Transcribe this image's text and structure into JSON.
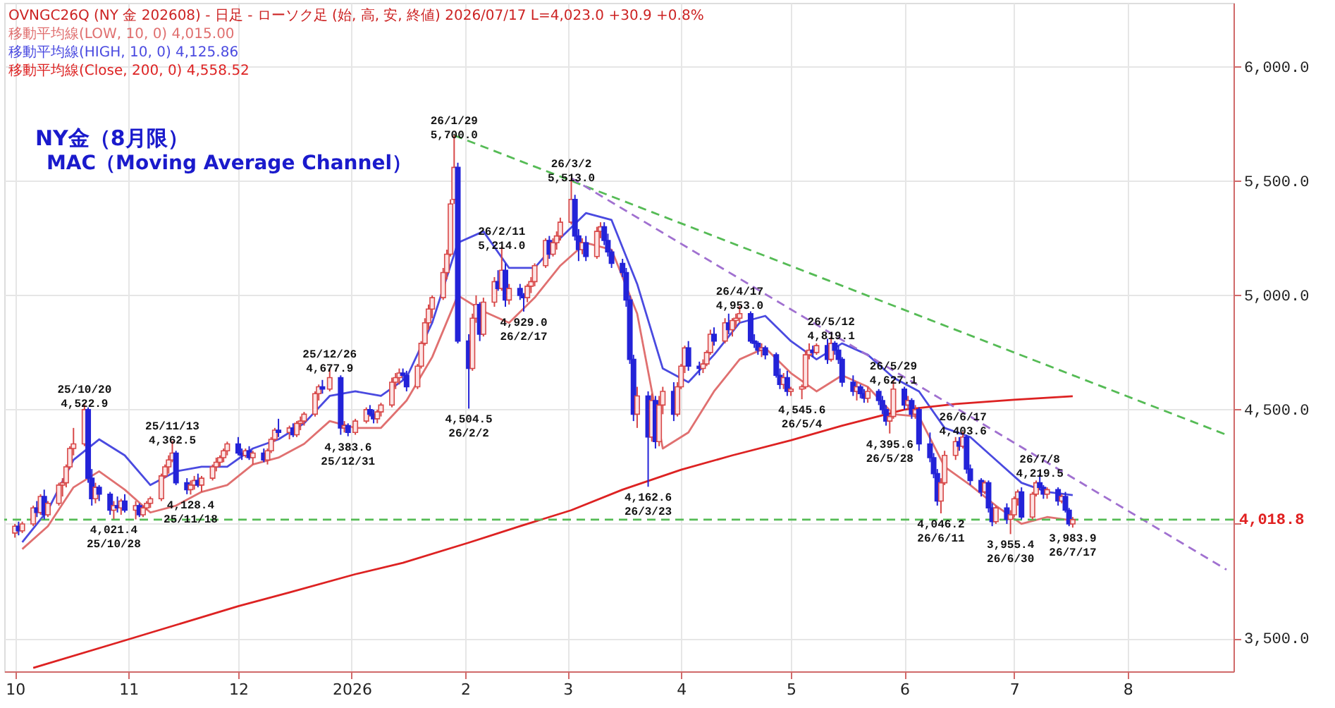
{
  "chart_data": {
    "type": "candlestick",
    "title": "NY金（8月限）",
    "subtitle": "MAC（Moving Average Channel）",
    "x": [
      "2025-10-01",
      "2025-10-02",
      "2025-10-03",
      "2025-10-06",
      "2025-10-07",
      "2025-10-08",
      "2025-10-09",
      "2025-10-10",
      "2025-10-13",
      "2025-10-14",
      "2025-10-15",
      "2025-10-16",
      "2025-10-17",
      "2025-10-20",
      "2025-10-21",
      "2025-10-22",
      "2025-10-23",
      "2025-10-24",
      "2025-10-27",
      "2025-10-28",
      "2025-10-29",
      "2025-10-30",
      "2025-10-31",
      "2025-11-03",
      "2025-11-04",
      "2025-11-05",
      "2025-11-06",
      "2025-11-07",
      "2025-11-10",
      "2025-11-11",
      "2025-11-12",
      "2025-11-13",
      "2025-11-14",
      "2025-11-17",
      "2025-11-18",
      "2025-11-19",
      "2025-11-20",
      "2025-11-21",
      "2025-11-24",
      "2025-11-25",
      "2025-11-26",
      "2025-11-27",
      "2025-11-28",
      "2025-12-01",
      "2025-12-02",
      "2025-12-03",
      "2025-12-04",
      "2025-12-05",
      "2025-12-08",
      "2025-12-09",
      "2025-12-10",
      "2025-12-11",
      "2025-12-12",
      "2025-12-15",
      "2025-12-16",
      "2025-12-17",
      "2025-12-18",
      "2025-12-19",
      "2025-12-22",
      "2025-12-23",
      "2025-12-24",
      "2025-12-26",
      "2025-12-29",
      "2025-12-30",
      "2025-12-31",
      "2026-01-02",
      "2026-01-05",
      "2026-01-06",
      "2026-01-07",
      "2026-01-08",
      "2026-01-09",
      "2026-01-12",
      "2026-01-13",
      "2026-01-14",
      "2026-01-15",
      "2026-01-16",
      "2026-01-19",
      "2026-01-20",
      "2026-01-21",
      "2026-01-22",
      "2026-01-23",
      "2026-01-26",
      "2026-01-27",
      "2026-01-28",
      "2026-01-29",
      "2026-01-30",
      "2026-02-02",
      "2026-02-03",
      "2026-02-04",
      "2026-02-05",
      "2026-02-06",
      "2026-02-09",
      "2026-02-10",
      "2026-02-11",
      "2026-02-12",
      "2026-02-13",
      "2026-02-16",
      "2026-02-17",
      "2026-02-18",
      "2026-02-19",
      "2026-02-20",
      "2026-02-23",
      "2026-02-24",
      "2026-02-25",
      "2026-02-26",
      "2026-02-27",
      "2026-03-02",
      "2026-03-03",
      "2026-03-04",
      "2026-03-05",
      "2026-03-06",
      "2026-03-09",
      "2026-03-10",
      "2026-03-11",
      "2026-03-12",
      "2026-03-13",
      "2026-03-16",
      "2026-03-17",
      "2026-03-18",
      "2026-03-19",
      "2026-03-20",
      "2026-03-23",
      "2026-03-24",
      "2026-03-25",
      "2026-03-26",
      "2026-03-27",
      "2026-03-30",
      "2026-03-31",
      "2026-04-01",
      "2026-04-02",
      "2026-04-03",
      "2026-04-06",
      "2026-04-07",
      "2026-04-08",
      "2026-04-09",
      "2026-04-10",
      "2026-04-13",
      "2026-04-14",
      "2026-04-15",
      "2026-04-16",
      "2026-04-17",
      "2026-04-20",
      "2026-04-21",
      "2026-04-22",
      "2026-04-23",
      "2026-04-24",
      "2026-04-27",
      "2026-04-28",
      "2026-04-29",
      "2026-04-30",
      "2026-05-01",
      "2026-05-04",
      "2026-05-05",
      "2026-05-06",
      "2026-05-07",
      "2026-05-08",
      "2026-05-11",
      "2026-05-12",
      "2026-05-13",
      "2026-05-14",
      "2026-05-15",
      "2026-05-18",
      "2026-05-19",
      "2026-05-20",
      "2026-05-21",
      "2026-05-22",
      "2026-05-25",
      "2026-05-26",
      "2026-05-27",
      "2026-05-28",
      "2026-05-29",
      "2026-06-01",
      "2026-06-02",
      "2026-06-03",
      "2026-06-04",
      "2026-06-05",
      "2026-06-08",
      "2026-06-09",
      "2026-06-10",
      "2026-06-11",
      "2026-06-12",
      "2026-06-15",
      "2026-06-16",
      "2026-06-17",
      "2026-06-18",
      "2026-06-19",
      "2026-06-22",
      "2026-06-23",
      "2026-06-24",
      "2026-06-25",
      "2026-06-26",
      "2026-06-29",
      "2026-06-30",
      "2026-07-01",
      "2026-07-02",
      "2026-07-03",
      "2026-07-06",
      "2026-07-07",
      "2026-07-08",
      "2026-07-09",
      "2026-07-10",
      "2026-07-13",
      "2026-07-14",
      "2026-07-15",
      "2026-07-16",
      "2026-07-17"
    ],
    "ohlc": [
      [
        3960,
        4000,
        3940,
        3990
      ],
      [
        3990,
        4010,
        3950,
        3970
      ],
      [
        3970,
        4010,
        3960,
        4000
      ],
      [
        4000,
        4080,
        3990,
        4070
      ],
      [
        4070,
        4100,
        4030,
        4050
      ],
      [
        4050,
        4130,
        4040,
        4120
      ],
      [
        4120,
        4150,
        4020,
        4040
      ],
      [
        4040,
        4100,
        4030,
        4090
      ],
      [
        4090,
        4180,
        4080,
        4170
      ],
      [
        4170,
        4200,
        4120,
        4180
      ],
      [
        4180,
        4260,
        4160,
        4250
      ],
      [
        4250,
        4340,
        4240,
        4330
      ],
      [
        4330,
        4420,
        4300,
        4350
      ],
      [
        4350,
        4522.9,
        4340,
        4500
      ],
      [
        4500,
        4510,
        4180,
        4200
      ],
      [
        4200,
        4240,
        4080,
        4110
      ],
      [
        4110,
        4180,
        4090,
        4160
      ],
      [
        4160,
        4170,
        4100,
        4130
      ],
      [
        4130,
        4140,
        4040,
        4060
      ],
      [
        4060,
        4100,
        4021.4,
        4080
      ],
      [
        4080,
        4120,
        4050,
        4070
      ],
      [
        4070,
        4110,
        4040,
        4100
      ],
      [
        4100,
        4130,
        4050,
        4060
      ],
      [
        4060,
        4100,
        4020,
        4080
      ],
      [
        4080,
        4090,
        4030,
        4040
      ],
      [
        4040,
        4080,
        4030,
        4070
      ],
      [
        4070,
        4100,
        4060,
        4090
      ],
      [
        4090,
        4120,
        4070,
        4110
      ],
      [
        4110,
        4220,
        4100,
        4210
      ],
      [
        4210,
        4260,
        4200,
        4250
      ],
      [
        4250,
        4300,
        4220,
        4280
      ],
      [
        4280,
        4362.5,
        4270,
        4310
      ],
      [
        4310,
        4320,
        4170,
        4180
      ],
      [
        4180,
        4200,
        4130,
        4150
      ],
      [
        4150,
        4190,
        4128.4,
        4170
      ],
      [
        4170,
        4210,
        4150,
        4190
      ],
      [
        4190,
        4220,
        4160,
        4170
      ],
      [
        4170,
        4210,
        4140,
        4200
      ],
      [
        4200,
        4260,
        4190,
        4250
      ],
      [
        4250,
        4290,
        4230,
        4270
      ],
      [
        4270,
        4300,
        4250,
        4290
      ],
      [
        4290,
        4330,
        4270,
        4320
      ],
      [
        4320,
        4360,
        4300,
        4350
      ],
      [
        4350,
        4380,
        4300,
        4310
      ],
      [
        4310,
        4330,
        4280,
        4300
      ],
      [
        4300,
        4330,
        4290,
        4320
      ],
      [
        4320,
        4340,
        4280,
        4290
      ],
      [
        4290,
        4320,
        4260,
        4310
      ],
      [
        4310,
        4330,
        4270,
        4280
      ],
      [
        4280,
        4330,
        4260,
        4320
      ],
      [
        4320,
        4380,
        4310,
        4370
      ],
      [
        4370,
        4420,
        4360,
        4410
      ],
      [
        4410,
        4460,
        4380,
        4400
      ],
      [
        4400,
        4430,
        4370,
        4420
      ],
      [
        4420,
        4440,
        4380,
        4390
      ],
      [
        4390,
        4450,
        4380,
        4440
      ],
      [
        4440,
        4470,
        4410,
        4450
      ],
      [
        4450,
        4490,
        4430,
        4480
      ],
      [
        4480,
        4580,
        4470,
        4570
      ],
      [
        4570,
        4610,
        4540,
        4600
      ],
      [
        4600,
        4630,
        4570,
        4590
      ],
      [
        4590,
        4677.9,
        4580,
        4640
      ],
      [
        4640,
        4650,
        4390,
        4420
      ],
      [
        4420,
        4450,
        4400,
        4430
      ],
      [
        4430,
        4440,
        4383.6,
        4400
      ],
      [
        4400,
        4460,
        4390,
        4450
      ],
      [
        4450,
        4510,
        4440,
        4500
      ],
      [
        4500,
        4520,
        4470,
        4480
      ],
      [
        4480,
        4500,
        4440,
        4460
      ],
      [
        4460,
        4500,
        4440,
        4490
      ],
      [
        4490,
        4530,
        4470,
        4520
      ],
      [
        4520,
        4640,
        4510,
        4620
      ],
      [
        4620,
        4660,
        4590,
        4640
      ],
      [
        4640,
        4680,
        4610,
        4660
      ],
      [
        4660,
        4680,
        4630,
        4650
      ],
      [
        4650,
        4670,
        4580,
        4600
      ],
      [
        4600,
        4700,
        4590,
        4690
      ],
      [
        4690,
        4800,
        4680,
        4790
      ],
      [
        4790,
        4900,
        4780,
        4880
      ],
      [
        4880,
        4960,
        4850,
        4940
      ],
      [
        4940,
        5000,
        4900,
        4990
      ],
      [
        4990,
        5120,
        4980,
        5100
      ],
      [
        5100,
        5200,
        5070,
        5180
      ],
      [
        5180,
        5420,
        5170,
        5400
      ],
      [
        5420,
        5700.0,
        5400,
        5560
      ],
      [
        5560,
        5580,
        4790,
        4800
      ],
      [
        4800,
        4830,
        4504.5,
        4680
      ],
      [
        4680,
        4920,
        4670,
        4900
      ],
      [
        4900,
        5000,
        4880,
        4960
      ],
      [
        4960,
        4970,
        4800,
        4830
      ],
      [
        4830,
        4990,
        4820,
        4970
      ],
      [
        4970,
        5080,
        4950,
        5060
      ],
      [
        5060,
        5110,
        5020,
        5030
      ],
      [
        5030,
        5214.0,
        5020,
        5110
      ],
      [
        5110,
        5140,
        4950,
        4980
      ],
      [
        4980,
        5050,
        4960,
        5030
      ],
      [
        5030,
        5050,
        4980,
        5000
      ],
      [
        5000,
        5010,
        4929.0,
        4990
      ],
      [
        4990,
        5050,
        4970,
        5040
      ],
      [
        5040,
        5080,
        5010,
        5060
      ],
      [
        5060,
        5140,
        5040,
        5130
      ],
      [
        5130,
        5250,
        5120,
        5240
      ],
      [
        5240,
        5260,
        5160,
        5180
      ],
      [
        5180,
        5250,
        5170,
        5230
      ],
      [
        5230,
        5280,
        5200,
        5260
      ],
      [
        5260,
        5340,
        5240,
        5320
      ],
      [
        5320,
        5513.0,
        5310,
        5420
      ],
      [
        5420,
        5440,
        5240,
        5260
      ],
      [
        5260,
        5290,
        5150,
        5200
      ],
      [
        5200,
        5250,
        5180,
        5230
      ],
      [
        5230,
        5260,
        5150,
        5170
      ],
      [
        5170,
        5300,
        5160,
        5280
      ],
      [
        5280,
        5320,
        5250,
        5300
      ],
      [
        5300,
        5320,
        5220,
        5240
      ],
      [
        5240,
        5270,
        5170,
        5190
      ],
      [
        5190,
        5200,
        5120,
        5140
      ],
      [
        5140,
        5160,
        5080,
        5100
      ],
      [
        5100,
        5120,
        4950,
        4980
      ],
      [
        4980,
        5000,
        4700,
        4720
      ],
      [
        4720,
        4740,
        4450,
        4480
      ],
      [
        4480,
        4600,
        4420,
        4560
      ],
      [
        4560,
        4580,
        4162.6,
        4380
      ],
      [
        4380,
        4570,
        4360,
        4540
      ],
      [
        4540,
        4560,
        4330,
        4360
      ],
      [
        4360,
        4560,
        4340,
        4520
      ],
      [
        4520,
        4600,
        4480,
        4580
      ],
      [
        4580,
        4620,
        4450,
        4480
      ],
      [
        4480,
        4620,
        4470,
        4600
      ],
      [
        4600,
        4700,
        4590,
        4690
      ],
      [
        4690,
        4780,
        4660,
        4770
      ],
      [
        4770,
        4800,
        4670,
        4690
      ],
      [
        4690,
        4710,
        4650,
        4680
      ],
      [
        4680,
        4720,
        4660,
        4700
      ],
      [
        4700,
        4760,
        4690,
        4750
      ],
      [
        4750,
        4850,
        4740,
        4830
      ],
      [
        4830,
        4860,
        4780,
        4800
      ],
      [
        4800,
        4900,
        4790,
        4880
      ],
      [
        4880,
        4920,
        4830,
        4850
      ],
      [
        4850,
        4900,
        4820,
        4890
      ],
      [
        4890,
        4920,
        4860,
        4900
      ],
      [
        4900,
        4953.0,
        4880,
        4920
      ],
      [
        4920,
        4930,
        4790,
        4800
      ],
      [
        4800,
        4830,
        4770,
        4790
      ],
      [
        4790,
        4800,
        4740,
        4760
      ],
      [
        4760,
        4790,
        4730,
        4770
      ],
      [
        4770,
        4780,
        4720,
        4740
      ],
      [
        4740,
        4750,
        4640,
        4650
      ],
      [
        4650,
        4680,
        4590,
        4610
      ],
      [
        4610,
        4660,
        4590,
        4640
      ],
      [
        4640,
        4670,
        4560,
        4580
      ],
      [
        4580,
        4600,
        4560,
        4590
      ],
      [
        4590,
        4610,
        4545.6,
        4600
      ],
      [
        4600,
        4760,
        4590,
        4740
      ],
      [
        4740,
        4790,
        4720,
        4760
      ],
      [
        4760,
        4780,
        4730,
        4750
      ],
      [
        4750,
        4790,
        4740,
        4780
      ],
      [
        4780,
        4810,
        4700,
        4720
      ],
      [
        4720,
        4819.1,
        4710,
        4790
      ],
      [
        4790,
        4800,
        4740,
        4760
      ],
      [
        4760,
        4780,
        4700,
        4720
      ],
      [
        4720,
        4730,
        4600,
        4620
      ],
      [
        4620,
        4650,
        4560,
        4580
      ],
      [
        4580,
        4620,
        4540,
        4600
      ],
      [
        4600,
        4610,
        4550,
        4570
      ],
      [
        4570,
        4590,
        4530,
        4550
      ],
      [
        4550,
        4600,
        4530,
        4580
      ],
      [
        4580,
        4590,
        4520,
        4540
      ],
      [
        4540,
        4560,
        4480,
        4500
      ],
      [
        4500,
        4520,
        4430,
        4450
      ],
      [
        4450,
        4480,
        4395.6,
        4470
      ],
      [
        4470,
        4627.1,
        4460,
        4590
      ],
      [
        4590,
        4600,
        4500,
        4520
      ],
      [
        4520,
        4560,
        4500,
        4540
      ],
      [
        4540,
        4550,
        4460,
        4480
      ],
      [
        4480,
        4520,
        4460,
        4500
      ],
      [
        4500,
        4510,
        4320,
        4350
      ],
      [
        4350,
        4400,
        4270,
        4290
      ],
      [
        4290,
        4310,
        4200,
        4220
      ],
      [
        4220,
        4240,
        4080,
        4100
      ],
      [
        4100,
        4200,
        4046.2,
        4180
      ],
      [
        4180,
        4320,
        4170,
        4300
      ],
      [
        4300,
        4380,
        4280,
        4360
      ],
      [
        4360,
        4380,
        4320,
        4340
      ],
      [
        4340,
        4403.6,
        4330,
        4380
      ],
      [
        4380,
        4390,
        4220,
        4240
      ],
      [
        4240,
        4260,
        4170,
        4190
      ],
      [
        4190,
        4200,
        4120,
        4140
      ],
      [
        4140,
        4190,
        4130,
        4180
      ],
      [
        4180,
        4190,
        4050,
        4070
      ],
      [
        4070,
        4090,
        3990,
        4010
      ],
      [
        4010,
        4080,
        4000,
        4070
      ],
      [
        4070,
        4090,
        4000,
        4020
      ],
      [
        4020,
        4060,
        3955.4,
        4040
      ],
      [
        4040,
        4120,
        4030,
        4110
      ],
      [
        4110,
        4150,
        4080,
        4140
      ],
      [
        4140,
        4160,
        4020,
        4030
      ],
      [
        4030,
        4140,
        4020,
        4130
      ],
      [
        4130,
        4190,
        4120,
        4180
      ],
      [
        4180,
        4219.5,
        4150,
        4160
      ],
      [
        4160,
        4170,
        4110,
        4130
      ],
      [
        4130,
        4160,
        4110,
        4150
      ],
      [
        4150,
        4160,
        4080,
        4100
      ],
      [
        4100,
        4130,
        4090,
        4120
      ],
      [
        4120,
        4140,
        4050,
        4060
      ],
      [
        4060,
        4070,
        3990,
        4000
      ],
      [
        4000,
        4030,
        3983.9,
        4018.8
      ]
    ],
    "series": [
      {
        "name": "移動平均線(LOW, 10, 0) 4,015.00",
        "type": "line",
        "color": "#e07070",
        "x": [
          "2025-10-03",
          "2025-10-10",
          "2025-10-17",
          "2025-10-24",
          "2025-10-31",
          "2025-11-07",
          "2025-11-14",
          "2025-11-21",
          "2025-11-28",
          "2025-12-05",
          "2025-12-12",
          "2025-12-19",
          "2025-12-26",
          "2026-01-02",
          "2026-01-09",
          "2026-01-16",
          "2026-01-23",
          "2026-01-30",
          "2026-02-06",
          "2026-02-13",
          "2026-02-20",
          "2026-02-27",
          "2026-03-06",
          "2026-03-13",
          "2026-03-20",
          "2026-03-27",
          "2026-04-03",
          "2026-04-10",
          "2026-04-17",
          "2026-04-24",
          "2026-05-01",
          "2026-05-08",
          "2026-05-15",
          "2026-05-22",
          "2026-05-29",
          "2026-06-05",
          "2026-06-12",
          "2026-06-19",
          "2026-06-26",
          "2026-07-03",
          "2026-07-10",
          "2026-07-17"
        ],
        "values": [
          3890,
          3990,
          4160,
          4230,
          4150,
          4050,
          4080,
          4140,
          4170,
          4260,
          4290,
          4350,
          4450,
          4420,
          4420,
          4540,
          4730,
          5000,
          4930,
          4880,
          4990,
          5130,
          5230,
          5200,
          4920,
          4330,
          4400,
          4580,
          4720,
          4770,
          4660,
          4580,
          4650,
          4600,
          4480,
          4470,
          4250,
          4170,
          4080,
          4000,
          4030,
          4015.0
        ]
      },
      {
        "name": "移動平均線(HIGH, 10, 0) 4,125.86",
        "type": "line",
        "color": "#4a4ae0",
        "x": [
          "2025-10-03",
          "2025-10-10",
          "2025-10-17",
          "2025-10-24",
          "2025-10-31",
          "2025-11-07",
          "2025-11-14",
          "2025-11-21",
          "2025-11-28",
          "2025-12-05",
          "2025-12-12",
          "2025-12-19",
          "2025-12-26",
          "2026-01-02",
          "2026-01-09",
          "2026-01-16",
          "2026-01-23",
          "2026-01-30",
          "2026-02-06",
          "2026-02-13",
          "2026-02-20",
          "2026-02-27",
          "2026-03-06",
          "2026-03-13",
          "2026-03-20",
          "2026-03-27",
          "2026-04-03",
          "2026-04-10",
          "2026-04-17",
          "2026-04-24",
          "2026-05-01",
          "2026-05-08",
          "2026-05-15",
          "2026-05-22",
          "2026-05-29",
          "2026-06-05",
          "2026-06-12",
          "2026-06-19",
          "2026-06-26",
          "2026-07-03",
          "2026-07-10",
          "2026-07-17"
        ],
        "values": [
          3920,
          4060,
          4280,
          4370,
          4300,
          4170,
          4230,
          4250,
          4250,
          4330,
          4370,
          4440,
          4560,
          4580,
          4560,
          4640,
          4880,
          5230,
          5280,
          5120,
          5120,
          5250,
          5360,
          5330,
          5050,
          4680,
          4620,
          4740,
          4880,
          4910,
          4800,
          4720,
          4790,
          4740,
          4640,
          4580,
          4420,
          4380,
          4280,
          4180,
          4140,
          4125.86
        ]
      },
      {
        "name": "移動平均線(Close, 200, 0) 4,558.52",
        "type": "line",
        "color": "#dd2222",
        "x": [
          "2025-10-06",
          "2025-10-31",
          "2025-12-01",
          "2025-12-15",
          "2026-01-02",
          "2026-01-15",
          "2026-02-02",
          "2026-02-16",
          "2026-03-02",
          "2026-03-16",
          "2026-04-01",
          "2026-04-15",
          "2026-05-01",
          "2026-05-15",
          "2026-06-01",
          "2026-06-15",
          "2026-07-01",
          "2026-07-17"
        ],
        "values": [
          3370,
          3490,
          3640,
          3700,
          3780,
          3830,
          3918,
          3990,
          4060,
          4150,
          4237,
          4300,
          4366,
          4430,
          4500,
          4525,
          4543,
          4558.52
        ]
      },
      {
        "type": "line",
        "color": "#55bb55",
        "line_style": "dashed",
        "x": [
          "2026-01-29",
          "2026-08-28"
        ],
        "values": [
          5700.0,
          4390
        ]
      },
      {
        "type": "line",
        "color": "#a070d0",
        "line_style": "dashed",
        "x": [
          "2026-03-02",
          "2026-08-28"
        ],
        "values": [
          5513.0,
          3800
        ]
      }
    ],
    "xlim": [
      "2025-09-30",
      "2026-08-28"
    ],
    "xticks": [
      {
        "value": "2025-10-01",
        "label": "10"
      },
      {
        "value": "2025-11-01",
        "label": "11"
      },
      {
        "value": "2025-12-01",
        "label": "12"
      },
      {
        "value": "2026-01-01",
        "label": "2026"
      },
      {
        "value": "2026-02-01",
        "label": "2"
      },
      {
        "value": "2026-03-01",
        "label": "3"
      },
      {
        "value": "2026-04-01",
        "label": "4"
      },
      {
        "value": "2026-05-01",
        "label": "5"
      },
      {
        "value": "2026-06-01",
        "label": "6"
      },
      {
        "value": "2026-07-01",
        "label": "7"
      },
      {
        "value": "2026-08-01",
        "label": "8"
      }
    ],
    "ylim": [
      3355,
      6280
    ],
    "yticks": [
      {
        "value": 3500,
        "label": "3,500.0"
      },
      {
        "value": 4000,
        "label": null
      },
      {
        "value": 4500,
        "label": "4,500.0"
      },
      {
        "value": 5000,
        "label": "5,000.0"
      },
      {
        "value": 5500,
        "label": "5,500.0"
      },
      {
        "value": 6000,
        "label": "6,000.0"
      }
    ],
    "grid": true,
    "legend": "top left",
    "ref_lines": [
      {
        "axis": "y",
        "value": 4018.8,
        "label": "4,018.8",
        "color": "#55bb55",
        "line_style": "dashed"
      }
    ],
    "annotations": [
      "OVNGC26Q (NY 金 202608) - 日足 - ローソク足 (始, 高, 安, 終値)  2026/07/17 L=4,023.0 +30.9 +0.8%",
      {
        "text": "25/10/20\n4,522.9",
        "x": "2025-10-20",
        "y": 4522.9
      },
      {
        "text": "4,021.4\n25/10/28",
        "x": "2025-10-28",
        "y": 4021.4
      },
      {
        "text": "25/11/13\n4,362.5",
        "x": "2025-11-13",
        "y": 4362.5
      },
      {
        "text": "4,128.4\n25/11/18",
        "x": "2025-11-18",
        "y": 4128.4
      },
      {
        "text": "25/12/26\n4,677.9",
        "x": "2025-12-26",
        "y": 4677.9
      },
      {
        "text": "4,383.6\n25/12/31",
        "x": "2025-12-31",
        "y": 4383.6
      },
      {
        "text": "26/1/29\n5,700.0",
        "x": "2026-01-29",
        "y": 5700.0
      },
      {
        "text": "4,504.5\n26/2/2",
        "x": "2026-02-02",
        "y": 4504.5
      },
      {
        "text": "26/2/11\n5,214.0",
        "x": "2026-02-11",
        "y": 5214.0
      },
      {
        "text": "4,929.0\n26/2/17",
        "x": "2026-02-17",
        "y": 4929.0
      },
      {
        "text": "26/3/2\n5,513.0",
        "x": "2026-03-02",
        "y": 5513.0
      },
      {
        "text": "4,162.6\n26/3/23",
        "x": "2026-03-23",
        "y": 4162.6
      },
      {
        "text": "26/4/17\n4,953.0",
        "x": "2026-04-17",
        "y": 4953.0
      },
      {
        "text": "4,545.6\n26/5/4",
        "x": "2026-05-04",
        "y": 4545.6
      },
      {
        "text": "26/5/12\n4,819.1",
        "x": "2026-05-12",
        "y": 4819.1
      },
      {
        "text": "26/5/29\n4,627.1",
        "x": "2026-05-29",
        "y": 4627.1
      },
      {
        "text": "4,395.6\n26/5/28",
        "x": "2026-05-28",
        "y": 4395.6
      },
      {
        "text": "4,046.2\n26/6/11",
        "x": "2026-06-11",
        "y": 4046.2
      },
      {
        "text": "26/6/17\n4,403.6",
        "x": "2026-06-17",
        "y": 4403.6
      },
      {
        "text": "3,955.4\n26/6/30",
        "x": "2026-06-30",
        "y": 3955.4
      },
      {
        "text": "26/7/8\n4,219.5",
        "x": "2026-07-08",
        "y": 4219.5
      },
      {
        "text": "3,983.9\n26/7/17",
        "x": "2026-07-17",
        "y": 3983.9
      }
    ]
  }
}
